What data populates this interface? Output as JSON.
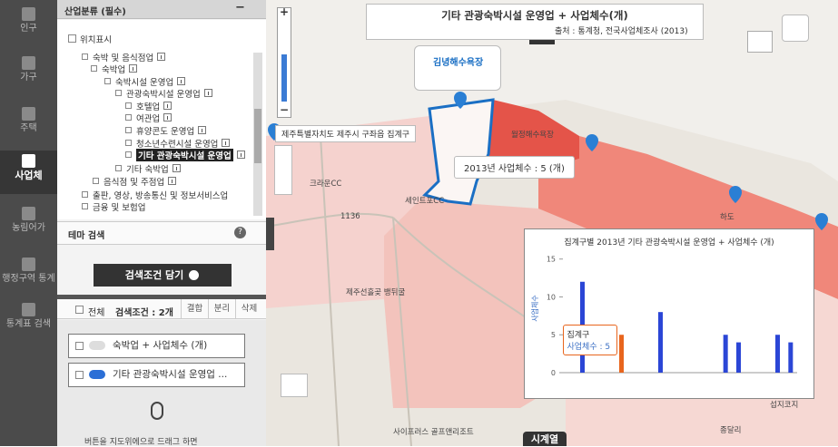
{
  "nav": {
    "items": [
      "인구",
      "가구",
      "주택",
      "사업체",
      "농림어가",
      "행정구역 통계",
      "통계표 검색"
    ]
  },
  "panel": {
    "title": "산업분류 (필수)",
    "collapse": "−",
    "location_toggle": "위치표시",
    "tree": [
      "숙박 및 음식점업",
      "숙박업",
      "숙박시설 운영업",
      "관광숙박시설 운영업",
      "호텔업",
      "여관업",
      "휴양콘도 운영업",
      "청소년수련시설 운영업",
      "기타 관광숙박시설 운영업",
      "기타 숙박업",
      "음식점 및 주점업",
      "출판, 영상, 방송통신 및 정보서비스업",
      "금융 및 보험업"
    ],
    "theme_search": "테마 검색",
    "help": "?",
    "add_button": "검색조건 담기",
    "select_all": "전체",
    "condition_count": "검색조건 : 2개",
    "tabs": [
      "결합",
      "분리",
      "삭제"
    ],
    "conditions": [
      "숙박업 + 사업체수 (개)",
      "기타 관광숙박시설 운영업 ..."
    ],
    "hint": "버튼을 지도위에으로 드래그 하면"
  },
  "map": {
    "title": "기타 관광숙박시설 운영업 + 사업체수(개)",
    "source": "출처 : 통계청, 전국사업체조사 (2013)",
    "popup": "김녕해수욕장",
    "area_label": "제주특별자치도 제주시 구좌읍 집계구",
    "value_tooltip": "2013년 사업체수 : 5 (개)",
    "zoom_in": "+",
    "zoom_out": "−",
    "places": [
      "크라운CC",
      "세인트포CC",
      "제주선흘곶 뱅뒤굴",
      "월정해수욕장",
      "사이프러스 골프앤리조트",
      "1136",
      "하도",
      "종달리",
      "섭지코지"
    ],
    "timeseries": "시계열"
  },
  "chart_data": {
    "type": "bar",
    "title": "집계구별 2013년 기타 관광숙박시설 운영업 + 사업체수 (개)",
    "y_label": "사업체수",
    "categories": [
      null,
      null,
      null,
      null,
      null,
      null,
      null,
      null,
      null,
      null,
      null,
      null,
      null,
      null,
      null,
      null,
      null,
      null
    ],
    "values": [
      0,
      12,
      0,
      0,
      5,
      0,
      0,
      8,
      0,
      0,
      0,
      0,
      5,
      4,
      0,
      0,
      5,
      4
    ],
    "color": "#2b46d6",
    "highlight": {
      "index": 4,
      "color": "#e8651d"
    },
    "ylim": [
      0,
      17
    ],
    "yticks": [
      0,
      5,
      10,
      15
    ],
    "tooltip": {
      "title": "집계구",
      "text": "사업체수 : 5"
    }
  }
}
